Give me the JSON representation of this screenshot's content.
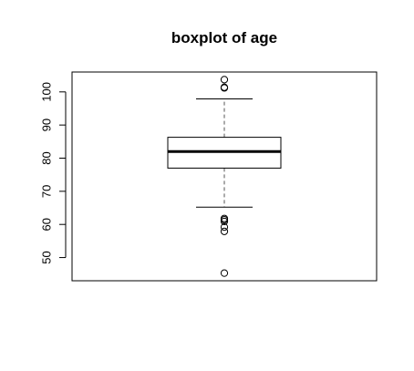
{
  "chart_data": {
    "type": "boxplot",
    "title": "boxplot of age",
    "xlabel": "",
    "ylabel": "",
    "ylim": [
      43,
      106
    ],
    "yticks": [
      50,
      60,
      70,
      80,
      90,
      100
    ],
    "ytick_labels": [
      "50",
      "60",
      "70",
      "80",
      "90",
      "100"
    ],
    "box": {
      "whisker_low": 65.2,
      "q1": 77.0,
      "median": 82.0,
      "q3": 86.3,
      "whisker_high": 97.9
    },
    "outliers": [
      103.7,
      101.4,
      101.2,
      61.8,
      61.4,
      60.9,
      59.2,
      57.9,
      45.3
    ],
    "colors": {
      "line": "#000000",
      "box_fill": "#ffffff",
      "whisker": "#555555"
    }
  }
}
